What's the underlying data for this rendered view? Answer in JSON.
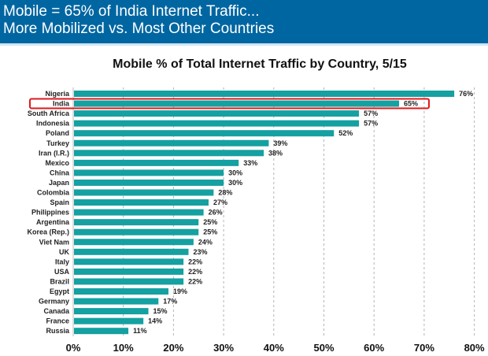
{
  "header": {
    "line1": "Mobile = 65% of India Internet Traffic...",
    "line2": "More Mobilized vs. Most Other Countries"
  },
  "colors": {
    "header_bg": "#0066a1",
    "bar": "#15a0a1",
    "highlight": "#e0191b"
  },
  "chart_data": {
    "type": "bar",
    "orientation": "horizontal",
    "title": "Mobile % of Total Internet Traffic by Country, 5/15",
    "xlabel": "",
    "ylabel": "",
    "xlim": [
      0,
      80
    ],
    "grid": "vertical dashed",
    "categories": [
      "Nigeria",
      "India",
      "South Africa",
      "Indonesia",
      "Poland",
      "Turkey",
      "Iran (I.R.)",
      "Mexico",
      "China",
      "Japan",
      "Colombia",
      "Spain",
      "Philippines",
      "Argentina",
      "Korea (Rep.)",
      "Viet Nam",
      "UK",
      "Italy",
      "USA",
      "Brazil",
      "Egypt",
      "Germany",
      "Canada",
      "France",
      "Russia"
    ],
    "values": [
      76,
      65,
      57,
      57,
      52,
      39,
      38,
      33,
      30,
      30,
      28,
      27,
      26,
      25,
      25,
      24,
      23,
      22,
      22,
      22,
      19,
      17,
      15,
      14,
      11
    ],
    "data_labels": [
      "76%",
      "65%",
      "57%",
      "57%",
      "52%",
      "39%",
      "38%",
      "33%",
      "30%",
      "30%",
      "28%",
      "27%",
      "26%",
      "25%",
      "25%",
      "24%",
      "23%",
      "22%",
      "22%",
      "22%",
      "19%",
      "17%",
      "15%",
      "14%",
      "11%"
    ],
    "x_ticks": [
      0,
      10,
      20,
      30,
      40,
      50,
      60,
      70,
      80
    ],
    "x_tick_labels": [
      "0%",
      "10%",
      "20%",
      "30%",
      "40%",
      "50%",
      "60%",
      "70%",
      "80%"
    ],
    "highlighted_category": "India"
  }
}
